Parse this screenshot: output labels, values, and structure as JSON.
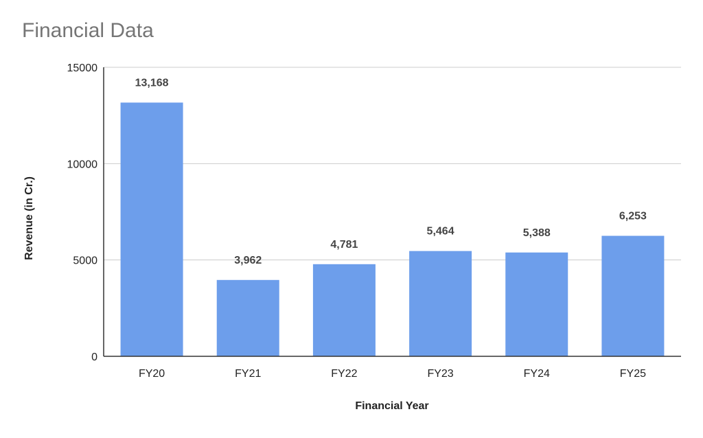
{
  "chart_data": {
    "type": "bar",
    "title": "Financial Data",
    "xlabel": "Financial Year",
    "ylabel": "Revenue (in Cr.)",
    "categories": [
      "FY20",
      "FY21",
      "FY22",
      "FY23",
      "FY24",
      "FY25"
    ],
    "values": [
      13168,
      3962,
      4781,
      5464,
      5388,
      6253
    ],
    "data_labels": [
      "13,168",
      "3,962",
      "4,781",
      "5,464",
      "5,388",
      "6,253"
    ],
    "ylim": [
      0,
      15000
    ],
    "yticks": [
      0,
      5000,
      10000,
      15000
    ],
    "ytick_labels": [
      "0",
      "5000",
      "10000",
      "15000"
    ],
    "grid": true,
    "legend": "none",
    "colors": {
      "bar": "#6d9eeb",
      "grid": "#cccccc",
      "axis": "#333333",
      "title": "#757575",
      "text": "#222222",
      "label": "#444444"
    }
  }
}
